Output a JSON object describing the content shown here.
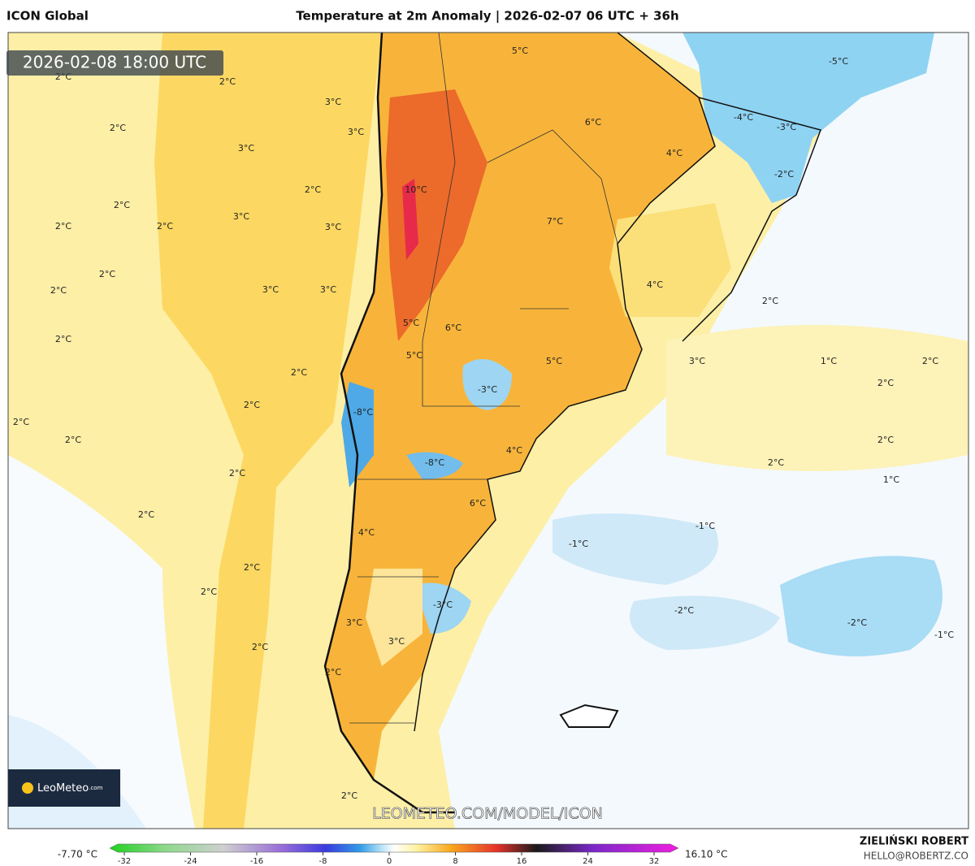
{
  "header": {
    "model": "ICON Global",
    "title": "Temperature at 2m Anomaly | 2026-02-07 06 UTC + 36h",
    "valid_time": "2026-02-08 18:00 UTC"
  },
  "map": {
    "labels": [
      "2°C",
      "2°C",
      "3°C",
      "2°C",
      "3°C",
      "3°C",
      "2°C",
      "2°C",
      "3°C",
      "2°C",
      "2°C",
      "3°C",
      "2°C",
      "2°C",
      "3°C",
      "3°C",
      "2°C",
      "2°C",
      "2°C",
      "2°C",
      "2°C",
      "2°C",
      "2°C",
      "2°C",
      "2°C",
      "2°C",
      "5°C",
      "-5°C",
      "6°C",
      "-4°C",
      "-3°C",
      "4°C",
      "-2°C",
      "10°C",
      "7°C",
      "4°C",
      "2°C",
      "5°C",
      "6°C",
      "5°C",
      "5°C",
      "3°C",
      "1°C",
      "2°C",
      "-3°C",
      "2°C",
      "-8°C",
      "2°C",
      "4°C",
      "-8°C",
      "2°C",
      "1°C",
      "6°C",
      "-1°C",
      "4°C",
      "-1°C",
      "-3°C",
      "-2°C",
      "-2°C",
      "3°C",
      "-1°C",
      "3°C",
      "2°C",
      "2°C"
    ],
    "watermark": "LEOMETEO.COM/MODEL/ICON"
  },
  "logo": {
    "name": "LeoMeteo",
    "suffix": ".com"
  },
  "colorbar": {
    "min_label": "-7.70 °C",
    "max_label": "16.10 °C",
    "ticks": [
      -32,
      -24,
      -16,
      -8,
      0,
      8,
      16,
      24,
      32
    ]
  },
  "credit": {
    "author": "ZIELIŃSKI ROBERT",
    "email": "HELLO@ROBERTZ.CO"
  }
}
